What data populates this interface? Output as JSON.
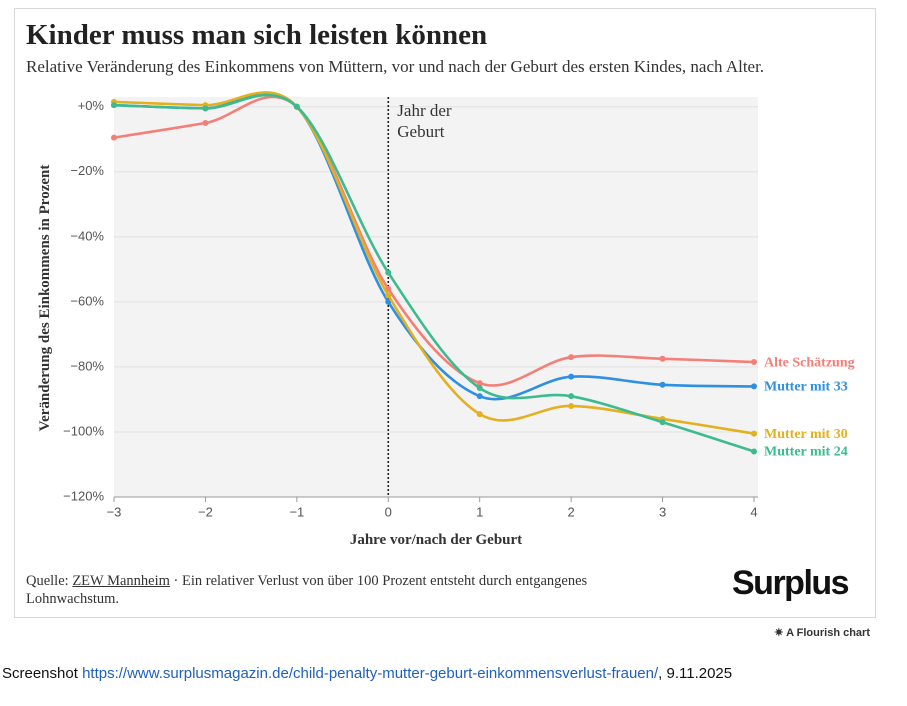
{
  "chart_data": {
    "type": "line",
    "title": "Kinder muss man sich leisten können",
    "subtitle": "Relative Veränderung des Einkommens von Müttern, vor und nach der Geburt des ersten Kindes, nach Alter.",
    "xlabel": "Jahre vor/nach der Geburt",
    "ylabel": "Veränderung des Einkommens in Prozent",
    "x": [
      -3,
      -2,
      -1,
      0,
      1,
      2,
      3,
      4
    ],
    "series": [
      {
        "name": "Alte Schätzung",
        "color": "#f47f78",
        "values": [
          -9.5,
          -5,
          0,
          -56,
          -85,
          -77,
          -77.5,
          -78.5
        ]
      },
      {
        "name": "Mutter mit 33",
        "color": "#2e8fe3",
        "values": [
          0.5,
          -0.5,
          0,
          -60,
          -89,
          -83,
          -85.5,
          -86
        ]
      },
      {
        "name": "Mutter mit 30",
        "color": "#e3b01e",
        "values": [
          1.5,
          0.5,
          0,
          -58,
          -94.5,
          -92,
          -96,
          -100.5
        ]
      },
      {
        "name": "Mutter mit 24",
        "color": "#3dbb8f",
        "values": [
          0.5,
          -0.5,
          0,
          -51,
          -86.5,
          -89,
          -97,
          -106
        ]
      }
    ],
    "xlim": [
      -3,
      4
    ],
    "ylim": [
      -120,
      3
    ],
    "xticks": [
      {
        "value": -3,
        "label": "−3"
      },
      {
        "value": -2,
        "label": "−2"
      },
      {
        "value": -1,
        "label": "−1"
      },
      0,
      1,
      2,
      3,
      4
    ],
    "yticks": [
      {
        "value": 0,
        "label": "+0%"
      },
      {
        "value": -20,
        "label": "−20%"
      },
      {
        "value": -40,
        "label": "−40%"
      },
      {
        "value": -60,
        "label": "−60%"
      },
      {
        "value": -80,
        "label": "−80%"
      },
      {
        "value": -100,
        "label": "−100%"
      },
      {
        "value": -120,
        "label": "−120%"
      }
    ],
    "grid": true,
    "annotation": [
      "Jahr der",
      "Geburt"
    ],
    "annotation_x": 0
  },
  "source": {
    "prefix": "Quelle:",
    "link": "ZEW Mannheim",
    "text": "· Ein relativer Verlust von über 100 Prozent entsteht durch entgangenes Lohnwachstum."
  },
  "logo": "Surplus",
  "flourish": "A Flourish chart",
  "caption": {
    "prefix": "Screenshot",
    "url": "https://www.surplusmagazin.de/child-penalty-mutter-geburt-einkommensverlust-frauen/",
    "date": ", 9.11.2025"
  }
}
